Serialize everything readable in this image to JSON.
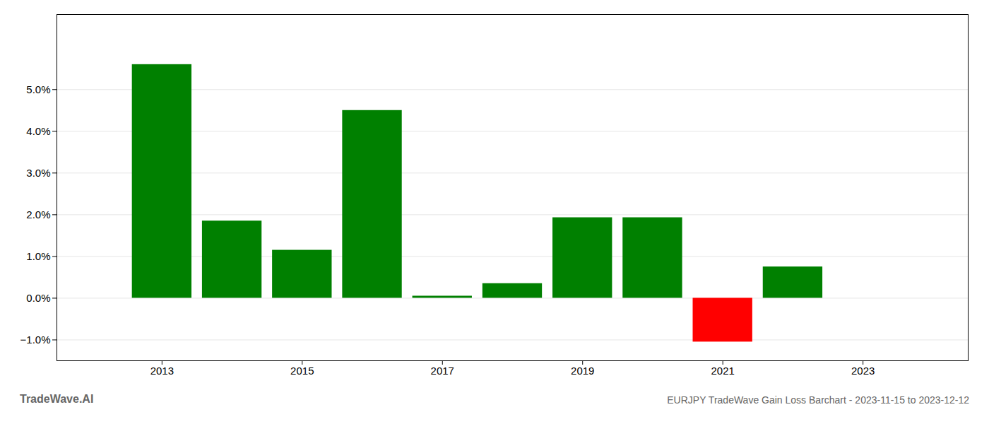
{
  "chart_data": {
    "type": "bar",
    "title": "EURJPY TradeWave Gain Loss Barchart - 2023-11-15 to 2023-12-12",
    "annotations": [
      "TradeWave.AI"
    ],
    "x": [
      2013,
      2014,
      2015,
      2016,
      2017,
      2018,
      2019,
      2020,
      2021,
      2022
    ],
    "values": [
      0.056,
      0.0185,
      0.0115,
      0.045,
      0.0005,
      0.0035,
      0.0193,
      0.0193,
      -0.0105,
      0.0075
    ],
    "colors": [
      "#008000",
      "#008000",
      "#008000",
      "#008000",
      "#008000",
      "#008000",
      "#008000",
      "#008000",
      "#ff0000",
      "#008000"
    ],
    "xlim": [
      2011.5,
      2024.5
    ],
    "xticks": [
      2013,
      2015,
      2017,
      2019,
      2021,
      2023
    ],
    "ylim": [
      -0.015,
      0.068
    ],
    "yticks": [
      {
        "value": -0.01,
        "label": "−1.0%"
      },
      {
        "value": 0.0,
        "label": "0.0%"
      },
      {
        "value": 0.01,
        "label": "1.0%"
      },
      {
        "value": 0.02,
        "label": "2.0%"
      },
      {
        "value": 0.03,
        "label": "3.0%"
      },
      {
        "value": 0.04,
        "label": "4.0%"
      },
      {
        "value": 0.05,
        "label": "5.0%"
      }
    ],
    "grid": true
  }
}
